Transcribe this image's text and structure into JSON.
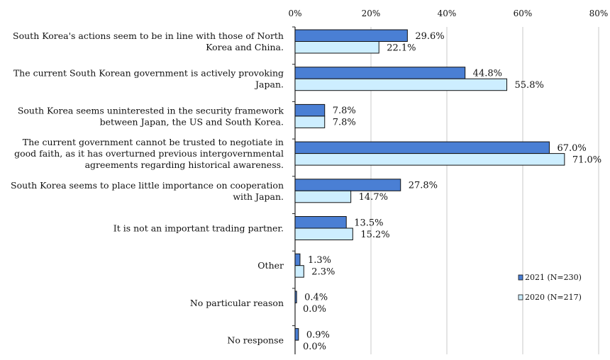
{
  "chart_data": {
    "type": "bar",
    "orientation": "horizontal",
    "x_ticks": [
      "0%",
      "20%",
      "40%",
      "60%",
      "80%"
    ],
    "xlim": [
      0,
      80
    ],
    "grid": true,
    "legend_position": "right",
    "categories": [
      {
        "lines": [
          "South Korea's actions seem to be in line with those of North",
          "Korea and China."
        ]
      },
      {
        "lines": [
          "The current South Korean government is actively provoking",
          "Japan."
        ]
      },
      {
        "lines": [
          "South Korea seems uninterested in the security framework",
          "between Japan, the US and South Korea."
        ]
      },
      {
        "lines": [
          "The current government cannot be trusted to negotiate in",
          "good faith, as it has overturned previous intergovernmental",
          "agreements regarding historical awareness."
        ]
      },
      {
        "lines": [
          "South Korea seems to place little importance on cooperation",
          "with Japan."
        ]
      },
      {
        "lines": [
          "It is not an important trading partner."
        ]
      },
      {
        "lines": [
          "Other"
        ]
      },
      {
        "lines": [
          "No particular reason"
        ]
      },
      {
        "lines": [
          "No response"
        ]
      }
    ],
    "series": [
      {
        "name": "2021 (N=230)",
        "color": "#4a7fd4",
        "values": [
          29.6,
          44.8,
          7.8,
          67.0,
          27.8,
          13.5,
          1.3,
          0.4,
          0.9
        ],
        "labels": [
          "29.6%",
          "44.8%",
          "7.8%",
          "67.0%",
          "27.8%",
          "13.5%",
          "1.3%",
          "0.4%",
          "0.9%"
        ]
      },
      {
        "name": "2020 (N=217)",
        "color": "#cdeeff",
        "values": [
          22.1,
          55.8,
          7.8,
          71.0,
          14.7,
          15.2,
          2.3,
          0.0,
          0.0
        ],
        "labels": [
          "22.1%",
          "55.8%",
          "7.8%",
          "71.0%",
          "14.7%",
          "15.2%",
          "2.3%",
          "0.0%",
          "0.0%"
        ]
      }
    ]
  }
}
